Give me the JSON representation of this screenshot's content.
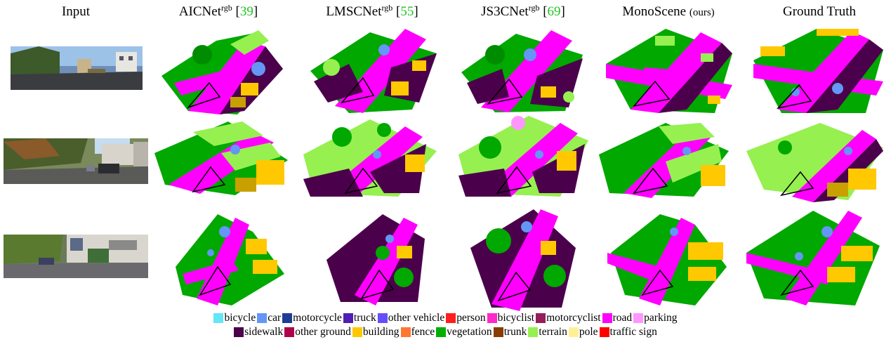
{
  "headers": {
    "input": "Input",
    "aicnet": {
      "name": "AICNet",
      "sup": "rgb",
      "ref": "39"
    },
    "lmscnet": {
      "name": "LMSCNet",
      "sup": "rgb",
      "ref": "55"
    },
    "js3cnet": {
      "name": "JS3CNet",
      "sup": "rgb",
      "ref": "69"
    },
    "monoscene": {
      "name": "MonoScene",
      "tag": "(ours)"
    },
    "gt": "Ground Truth"
  },
  "legend": [
    {
      "label": "bicycle",
      "color": "#64e6f5"
    },
    {
      "label": "car",
      "color": "#6496f5"
    },
    {
      "label": "motorcycle",
      "color": "#1e3c96"
    },
    {
      "label": "truck",
      "color": "#501eb4"
    },
    {
      "label": "other vehicle",
      "color": "#6450fa"
    },
    {
      "label": "person",
      "color": "#ff1e1e"
    },
    {
      "label": "bicyclist",
      "color": "#ff28c8"
    },
    {
      "label": "motorcyclist",
      "color": "#961e5a"
    },
    {
      "label": "road",
      "color": "#ff00ff"
    },
    {
      "label": "parking",
      "color": "#ff96ff"
    },
    {
      "label": "sidewalk",
      "color": "#4b004b"
    },
    {
      "label": "other ground",
      "color": "#af004b"
    },
    {
      "label": "building",
      "color": "#ffc800"
    },
    {
      "label": "fence",
      "color": "#ff7832"
    },
    {
      "label": "vegetation",
      "color": "#00af00"
    },
    {
      "label": "trunk",
      "color": "#873c00"
    },
    {
      "label": "terrain",
      "color": "#96f050"
    },
    {
      "label": "pole",
      "color": "#fff096"
    },
    {
      "label": "traffic sign",
      "color": "#ff0000"
    }
  ]
}
